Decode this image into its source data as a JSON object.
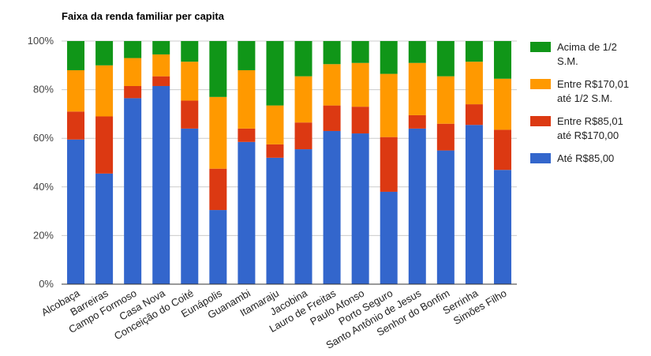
{
  "chart_data": {
    "type": "bar",
    "stacked": true,
    "title": "Faixa da renda familiar per capita",
    "xlabel": "",
    "ylabel": "",
    "ylim": [
      0,
      100
    ],
    "yticks": [
      "0%",
      "20%",
      "40%",
      "60%",
      "80%",
      "100%"
    ],
    "grid": true,
    "legend_position": "right",
    "categories": [
      "Alcobaça",
      "Barreiras",
      "Campo Formoso",
      "Casa Nova",
      "Conceição do Coité",
      "Eunápolis",
      "Guanambi",
      "Itamaraju",
      "Jacobina",
      "Lauro de Freitas",
      "Paulo Afonso",
      "Porto Seguro",
      "Santo Antônio de Jesus",
      "Senhor do Bonfim",
      "Serrinha",
      "Simões Filho"
    ],
    "series": [
      {
        "name": "Até R$85,00",
        "color": "#3366cc",
        "values": [
          59.5,
          45.5,
          76.5,
          81.5,
          64,
          30.5,
          58.5,
          52,
          55.5,
          63,
          62,
          38,
          64,
          55,
          65.5,
          47
        ]
      },
      {
        "name": "Entre R$85,01 até R$170,00",
        "color": "#dc3912",
        "values": [
          11.5,
          23.5,
          5,
          4,
          11.5,
          17,
          5.5,
          5.5,
          11,
          10.5,
          11,
          22.5,
          5.5,
          11,
          8.5,
          16.5
        ]
      },
      {
        "name": "Entre R$170,01 até 1/2 S.M.",
        "color": "#ff9900",
        "values": [
          17,
          21,
          11.5,
          9,
          16,
          29.5,
          24,
          16,
          19,
          17,
          18,
          26,
          21.5,
          19.5,
          17.5,
          21
        ]
      },
      {
        "name": "Acima de 1/2 S.M.",
        "color": "#109618",
        "values": [
          12,
          10,
          7,
          5.5,
          8.5,
          23,
          12,
          26.5,
          14.5,
          9.5,
          9,
          13.5,
          9,
          14.5,
          8.5,
          15.5
        ]
      }
    ],
    "legend": [
      {
        "lines": [
          "Acima de 1/2",
          "S.M."
        ],
        "color": "#109618"
      },
      {
        "lines": [
          "Entre R$170,01",
          "até 1/2 S.M."
        ],
        "color": "#ff9900"
      },
      {
        "lines": [
          "Entre R$85,01",
          "até R$170,00"
        ],
        "color": "#dc3912"
      },
      {
        "lines": [
          "Até R$85,00"
        ],
        "color": "#3366cc"
      }
    ]
  }
}
